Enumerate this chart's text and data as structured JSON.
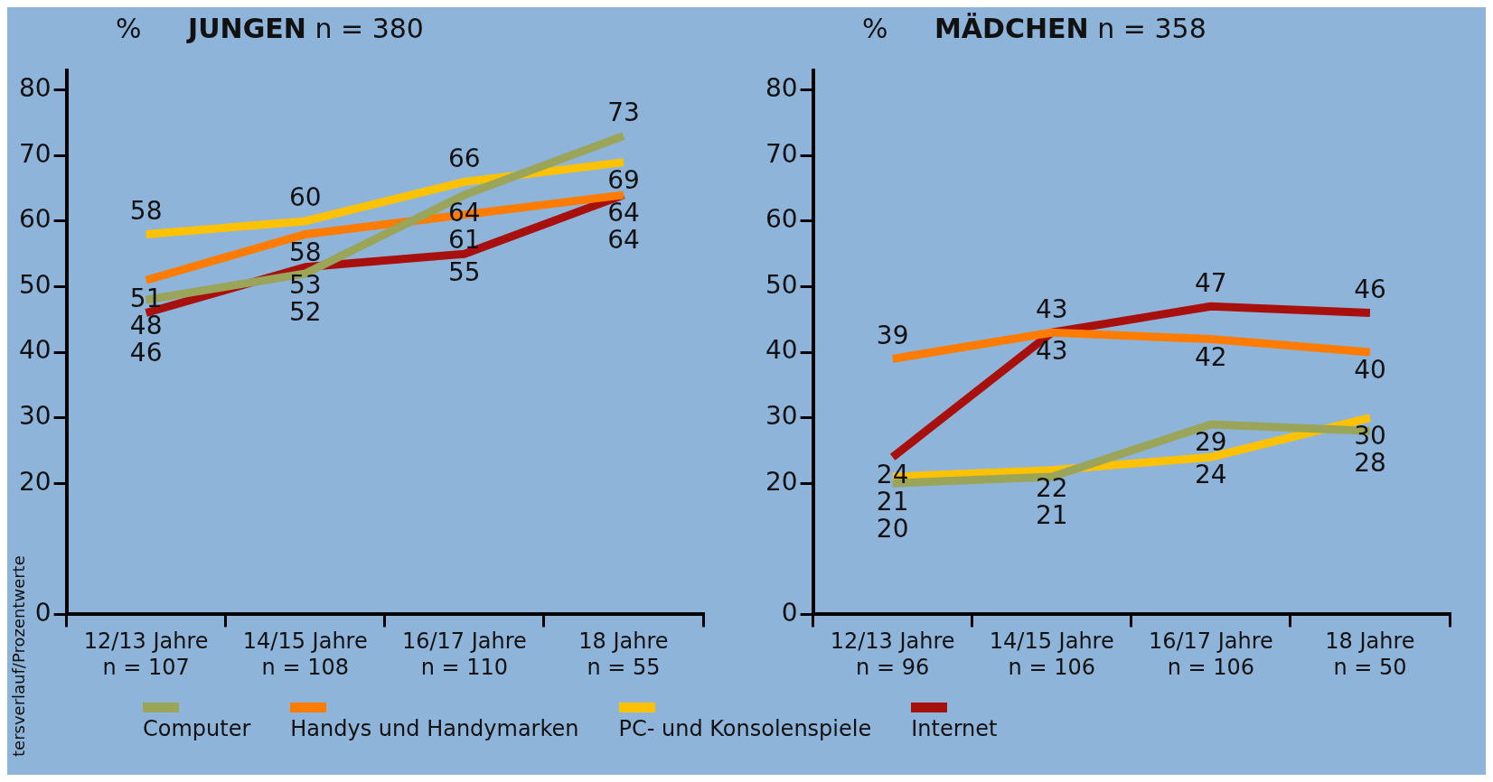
{
  "chart_data": [
    {
      "type": "line",
      "title": "JUNGEN",
      "subtitle": "n = 380",
      "ylabel": "%",
      "categories": [
        "12/13 Jahre\nn = 107",
        "14/15 Jahre\nn = 108",
        "16/17 Jahre\nn = 110",
        "18 Jahre\nn = 55"
      ],
      "series": [
        {
          "name": "Computer",
          "color": "#9aa55a",
          "values": [
            48,
            52,
            64,
            73
          ]
        },
        {
          "name": "Handys und Handymarken",
          "color": "#ff7c00",
          "values": [
            51,
            58,
            61,
            64
          ]
        },
        {
          "name": "PC- und Konsolenspiele",
          "color": "#ffc200",
          "values": [
            58,
            60,
            66,
            69
          ]
        },
        {
          "name": "Internet",
          "color": "#a8100e",
          "values": [
            46,
            53,
            55,
            64
          ]
        }
      ],
      "ylim": [
        0,
        83
      ],
      "yticks": [
        0,
        20,
        30,
        40,
        50,
        60,
        70,
        80
      ],
      "grid": false,
      "legend": "bottom",
      "data_labels": true,
      "marker": "none",
      "annotations": [
        "tersverlauf/Prozentwerte"
      ]
    },
    {
      "type": "line",
      "title": "MÄDCHEN",
      "subtitle": "n = 358",
      "ylabel": "%",
      "categories": [
        "12/13 Jahre\nn = 96",
        "14/15 Jahre\nn = 106",
        "16/17 Jahre\nn = 106",
        "18 Jahre\nn = 50"
      ],
      "series": [
        {
          "color": "#9aa55a",
          "values": [
            20,
            21,
            29,
            28
          ]
        },
        {
          "color": "#ff7c00",
          "values": [
            39,
            43,
            42,
            40
          ]
        },
        {
          "color": "#ffc200",
          "values": [
            21,
            22,
            24,
            30
          ]
        },
        {
          "color": "#a8100e",
          "values": [
            24,
            43,
            47,
            46
          ]
        }
      ],
      "ylim": [
        0,
        83
      ],
      "yticks": [
        0,
        20,
        30,
        40,
        50,
        60,
        70,
        80
      ],
      "grid": false,
      "data_labels": true,
      "marker": "none"
    }
  ]
}
